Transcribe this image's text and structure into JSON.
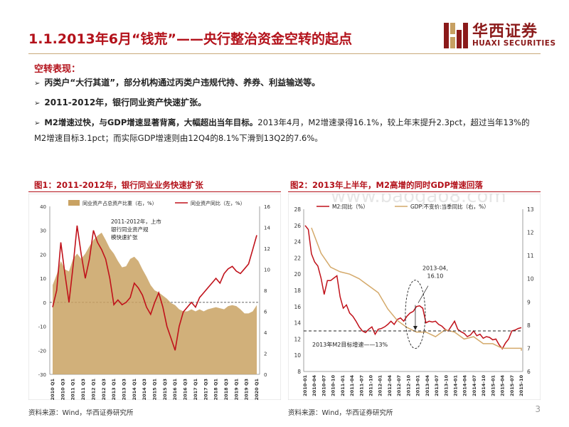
{
  "title": "1.1.2013年6月“钱荒”——央行整治资金空转的起点",
  "logo": {
    "cn": "华西证券",
    "en": "HUAXI SECURITIES",
    "color": "#8b1a1a"
  },
  "section_label": "空转表现：",
  "bullets": [
    {
      "strong": "丙类户“大行其道”，部分机构通过丙类户违规代持、养券、利益输送等。",
      "rest": ""
    },
    {
      "strong": "2011-2012年，银行同业资产快速扩张。",
      "rest": ""
    },
    {
      "strong": "M2增速过快，与GDP增速显著背离，大幅超出当年目标。",
      "rest": "2013年4月，M2增速录得16.1%，较上年末提升2.3pct，超过当年13%的M2增速目标3.1pct；而实际GDP增速则由12Q4的8.1%下滑到13Q2的7.6%。"
    }
  ],
  "chart1": {
    "header": "图1：2011-2012年，银行同业业务快速扩张",
    "source": "资料来源：Wind，华西证券研究所",
    "chart_data": {
      "type": "area",
      "legend": [
        "同业资产占总资产比重（右，%）",
        "同业资产同比（左，%）"
      ],
      "annotation": "2011-2012年，上市银行同业资产规模快速扩张",
      "x_ticks": [
        "2010 Q1",
        "2010 Q3",
        "2011 Q1",
        "2011 Q3",
        "2012 Q1",
        "2012 Q3",
        "2013 Q1",
        "2013 Q3",
        "2014 Q1",
        "2014 Q3",
        "2015 Q1",
        "2015 Q3",
        "2016 Q1",
        "2016 Q3",
        "2017 Q1",
        "2017 Q3",
        "2018 Q1",
        "2018 Q3",
        "2019 Q1",
        "2019 Q3",
        "2020 Q1"
      ],
      "left_axis": {
        "min": -30,
        "max": 40,
        "ticks": [
          -30,
          -20,
          -10,
          0,
          10,
          20,
          30,
          40
        ]
      },
      "right_axis": {
        "min": 0,
        "max": 16,
        "ticks": [
          0,
          2,
          4,
          6,
          8,
          10,
          12,
          14,
          16
        ]
      },
      "series": [
        {
          "name": "同业资产占总资产比重（右，%）",
          "axis": "right",
          "color": "#c9a263",
          "values": [
            8.5,
            9.5,
            10.8,
            10.0,
            9.8,
            11.0,
            11.5,
            11.0,
            11.5,
            12.2,
            12.8,
            13.2,
            13.5,
            12.8,
            12.0,
            11.5,
            10.8,
            10.2,
            10.3,
            11.0,
            11.2,
            10.8,
            10.0,
            9.3,
            8.5,
            8.0,
            7.8,
            7.5,
            7.2,
            6.8,
            6.6,
            6.2,
            6.0,
            6.0,
            6.2,
            6.0,
            6.2,
            6.0,
            6.2,
            6.3,
            6.4,
            6.3,
            6.2,
            6.5,
            6.6,
            6.5,
            6.2,
            5.8,
            5.8,
            6.0,
            6.6
          ]
        },
        {
          "name": "同业资产同比（左，%）",
          "axis": "left",
          "color": "#c0111a",
          "values": [
            -2,
            5,
            25,
            12,
            0,
            15,
            32,
            20,
            10,
            18,
            30,
            25,
            22,
            18,
            10,
            -1,
            1,
            -1,
            0,
            2,
            8,
            6,
            3,
            -2,
            -5,
            0,
            4,
            -2,
            -10,
            -15,
            -20,
            -10,
            -4,
            -2,
            0,
            -2,
            2,
            4,
            6,
            8,
            10,
            8,
            12,
            14,
            15,
            13,
            12,
            14,
            16,
            22,
            28
          ]
        }
      ]
    }
  },
  "chart2": {
    "header": "图2：2013年上半年，M2高增的同时GDP增速回落",
    "source": "资料来源：Wind，华西证券研究所",
    "watermark": "www.baogao8.com",
    "chart_data": {
      "type": "line",
      "legend": [
        "M2:同比（%）",
        "GDP:不变价:当季同比（右，%）"
      ],
      "annotations": [
        "2013-04,\n16.10",
        "2013年M2目标增速——13%"
      ],
      "x_ticks": [
        "2010-01",
        "2010-04",
        "2010-07",
        "2010-10",
        "2011-01",
        "2011-04",
        "2011-07",
        "2011-10",
        "2012-01",
        "2012-04",
        "2012-07",
        "2012-10",
        "2013-01",
        "2013-04",
        "2013-07",
        "2013-10",
        "2014-01",
        "2014-04",
        "2014-07",
        "2014-10",
        "2015-01",
        "2015-04",
        "2015-07",
        "2015-10"
      ],
      "left_axis": {
        "min": 8,
        "max": 28,
        "ticks": [
          8,
          10,
          12,
          14,
          16,
          18,
          20,
          22,
          24,
          26,
          28
        ]
      },
      "right_axis": {
        "min": 6,
        "max": 13,
        "ticks": [
          6,
          7,
          8,
          9,
          10,
          11,
          12,
          13
        ]
      },
      "reference_line": {
        "axis": "left",
        "value": 13,
        "label": "2013年M2目标增速——13%"
      },
      "series": [
        {
          "name": "M2:同比（%）",
          "axis": "left",
          "color": "#c0111a",
          "values": [
            26,
            25.5,
            22.5,
            21.5,
            21,
            19.5,
            17.5,
            19.2,
            19.2,
            19.5,
            19.8,
            17.2,
            15.8,
            16.2,
            15.2,
            14.8,
            14.2,
            13.5,
            13.0,
            12.8,
            13.2,
            13.5,
            12.6,
            13.2,
            13.3,
            13.5,
            13.8,
            14.2,
            13.8,
            14.4,
            14.6,
            14.2,
            14.8,
            15.2,
            15.4,
            16.0,
            16.1,
            15.8,
            14.0,
            14.2,
            14.1,
            14.2,
            13.8,
            13.6,
            13.2,
            13.0,
            13.6,
            14.2,
            13.2,
            12.9,
            12.7,
            12.3,
            12.5,
            13.0,
            12.4,
            12.6,
            12.1,
            12.3,
            12.2,
            11.9,
            12.0,
            11.3,
            10.8,
            11.5,
            12.0,
            13.0,
            13.1,
            13.3,
            13.4
          ]
        },
        {
          "name": "GDP:不变价:当季同比（右，%）",
          "axis": "right",
          "color": "#d4a96a",
          "values": [
            12.2,
            11.1,
            10.5,
            10.3,
            10.2,
            10.0,
            9.7,
            9.4,
            8.7,
            8.2,
            7.9,
            7.7,
            7.7,
            7.5,
            7.8,
            7.7,
            7.4,
            7.5,
            7.2,
            7.2,
            7.0,
            7.0,
            7.0,
            6.9
          ]
        }
      ]
    }
  },
  "page_number": "3"
}
